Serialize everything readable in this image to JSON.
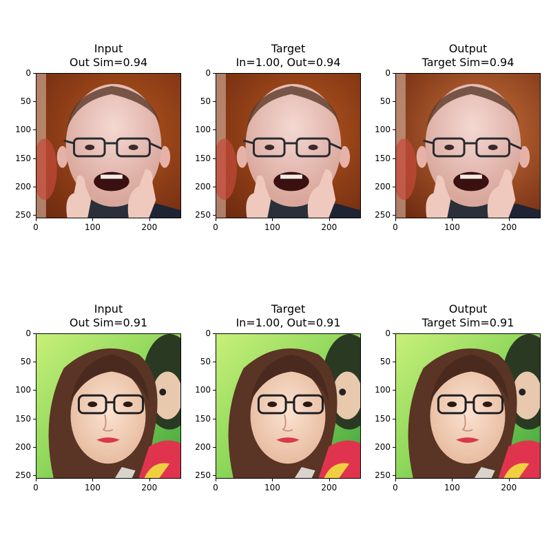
{
  "figure": {
    "axis_ticks": [
      "0",
      "50",
      "100",
      "150",
      "200",
      "250"
    ],
    "x_ticks": [
      "0",
      "100",
      "200"
    ]
  },
  "rows": [
    {
      "subject": "bald-man-with-glasses-thumbs-up",
      "panels": [
        {
          "title_line1": "Input",
          "title_line2": "Out Sim=0.94"
        },
        {
          "title_line1": "Target",
          "title_line2": "In=1.00, Out=0.94"
        },
        {
          "title_line1": "Output",
          "title_line2": "Target Sim=0.94"
        }
      ]
    },
    {
      "subject": "woman-with-glasses-selfie",
      "panels": [
        {
          "title_line1": "Input",
          "title_line2": "Out Sim=0.91"
        },
        {
          "title_line1": "Target",
          "title_line2": "In=1.00, Out=0.91"
        },
        {
          "title_line1": "Output",
          "title_line2": "Target Sim=0.91"
        }
      ]
    }
  ]
}
